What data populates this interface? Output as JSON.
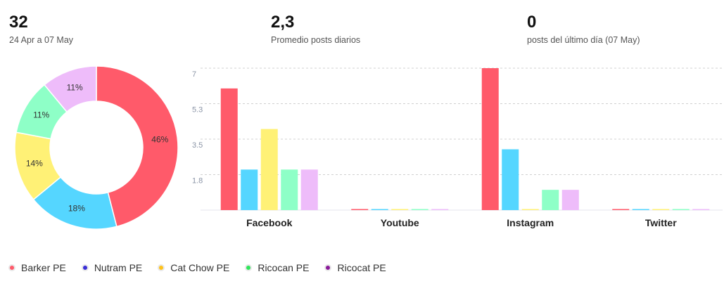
{
  "stats": [
    {
      "value": "32",
      "label": "24 Apr a 07 May"
    },
    {
      "value": "2,3",
      "label": "Promedio posts diarios"
    },
    {
      "value": "0",
      "label": "posts del último día (07 May)"
    }
  ],
  "colors": {
    "Barker PE": "#ff5a6a",
    "Nutram PE": "#55d6ff",
    "Cat Chow PE": "#fff176",
    "Ricocan PE": "#8effc7",
    "Ricocat PE": "#eebcfa"
  },
  "legend": [
    {
      "label": "Barker PE",
      "color": "#ff5a6a"
    },
    {
      "label": "Nutram PE",
      "color": "#3a2fd8"
    },
    {
      "label": "Cat Chow PE",
      "color": "#ffc21a"
    },
    {
      "label": "Ricocan PE",
      "color": "#2ee65a"
    },
    {
      "label": "Ricocat PE",
      "color": "#8a1a9a"
    }
  ],
  "chart_data": [
    {
      "type": "pie",
      "subtype": "donut",
      "labels": [
        "Barker PE",
        "Nutram PE",
        "Cat Chow PE",
        "Ricocan PE",
        "Ricocat PE"
      ],
      "values": [
        46,
        18,
        14,
        11,
        11
      ],
      "data_labels": [
        "46%",
        "18%",
        "14%",
        "11%",
        "11%"
      ],
      "colors": [
        "#ff5a6a",
        "#55d6ff",
        "#fff176",
        "#8effc7",
        "#eebcfa"
      ]
    },
    {
      "type": "bar",
      "categories": [
        "Facebook",
        "Youtube",
        "Instagram",
        "Twitter"
      ],
      "series": [
        {
          "name": "Barker PE",
          "values": [
            6,
            0,
            7,
            0
          ]
        },
        {
          "name": "Nutram PE",
          "values": [
            2,
            0,
            3,
            0
          ]
        },
        {
          "name": "Cat Chow PE",
          "values": [
            4,
            0,
            0,
            0
          ]
        },
        {
          "name": "Ricocan PE",
          "values": [
            2,
            0,
            1,
            0
          ]
        },
        {
          "name": "Ricocat PE",
          "values": [
            2,
            0,
            1,
            0
          ]
        }
      ],
      "yticks": [
        "1.8",
        "3.5",
        "5.3",
        "7"
      ],
      "ytick_values": [
        1.75,
        3.5,
        5.25,
        7
      ],
      "ylim": [
        0,
        7
      ],
      "grid": true,
      "legend": "bottom-left"
    }
  ]
}
